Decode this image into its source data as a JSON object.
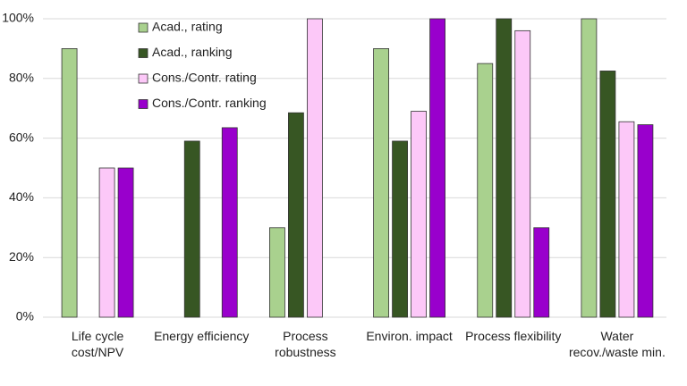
{
  "chart_data": {
    "type": "bar",
    "categories": [
      "Life cycle cost/NPV",
      "Energy efficiency",
      "Process robustness",
      "Environ. impact",
      "Process flexibility",
      "Water recov./waste min."
    ],
    "series": [
      {
        "name": "Acad., rating",
        "color": "#a9d18e",
        "values": [
          90,
          null,
          30,
          90,
          85,
          100
        ]
      },
      {
        "name": "Acad., ranking",
        "color": "#375623",
        "values": [
          null,
          59,
          68.5,
          59,
          100,
          82.5
        ]
      },
      {
        "name": "Cons./Contr. rating",
        "color": "#fcc8f8",
        "values": [
          50,
          null,
          100,
          69,
          96,
          65.5
        ]
      },
      {
        "name": "Cons./Contr. ranking",
        "color": "#9900cc",
        "values": [
          50,
          63.5,
          null,
          100,
          30,
          64.5
        ]
      }
    ],
    "ylim": [
      0,
      100
    ],
    "yticks": [
      {
        "value": 0,
        "label": "0%"
      },
      {
        "value": 20,
        "label": "20%"
      },
      {
        "value": 40,
        "label": "40%"
      },
      {
        "value": 60,
        "label": "60%"
      },
      {
        "value": 80,
        "label": "80%"
      },
      {
        "value": 100,
        "label": "100%"
      }
    ],
    "grid": true,
    "legend": "top-left"
  }
}
